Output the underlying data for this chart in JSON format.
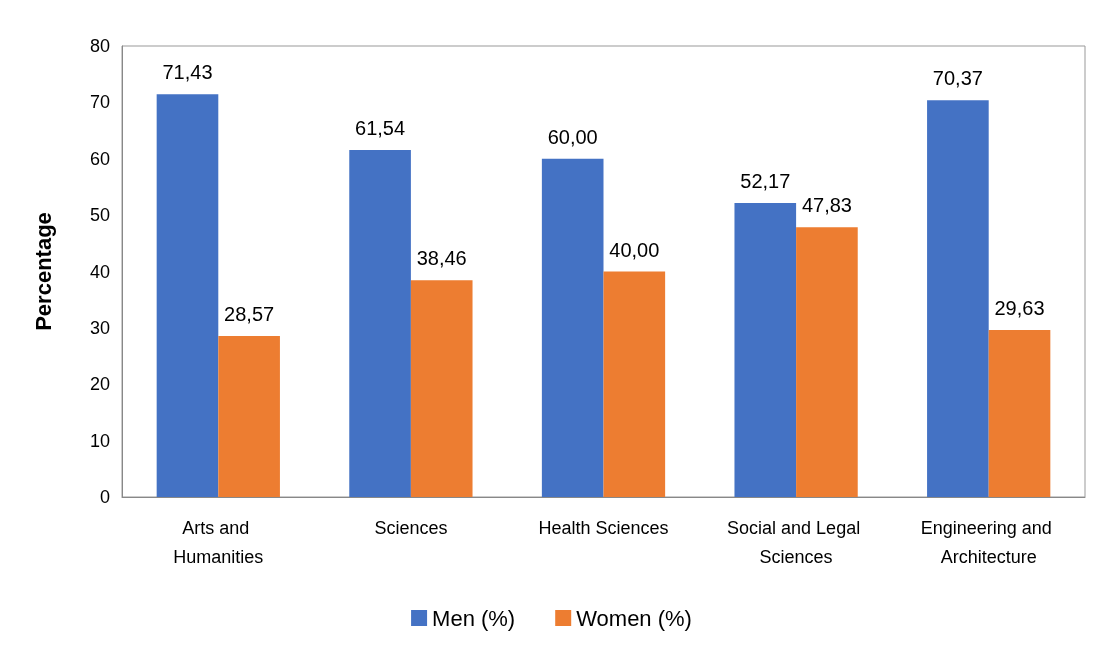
{
  "chart_data": {
    "type": "bar",
    "ylabel": "Percentage",
    "categories": [
      "Arts and Humanities",
      "Sciences",
      "Health Sciences",
      "Social and Legal Sciences",
      "Engineering and Architecture"
    ],
    "series": [
      {
        "name": "Men (%)",
        "color": "#4472c4",
        "values": [
          71.43,
          61.54,
          60.0,
          52.17,
          70.37
        ],
        "value_labels": [
          "71,43",
          "61,54",
          "60,00",
          "52,17",
          "70,37"
        ]
      },
      {
        "name": "Women (%)",
        "color": "#ed7d31",
        "values": [
          28.57,
          38.46,
          40.0,
          47.83,
          29.63
        ],
        "value_labels": [
          "28,57",
          "38,46",
          "40,00",
          "47,83",
          "29,63"
        ]
      }
    ],
    "ylim": [
      0,
      80
    ],
    "yticks": [
      0,
      10,
      20,
      30,
      40,
      50,
      60,
      70,
      80
    ],
    "grid": false,
    "legend": "bottom"
  }
}
